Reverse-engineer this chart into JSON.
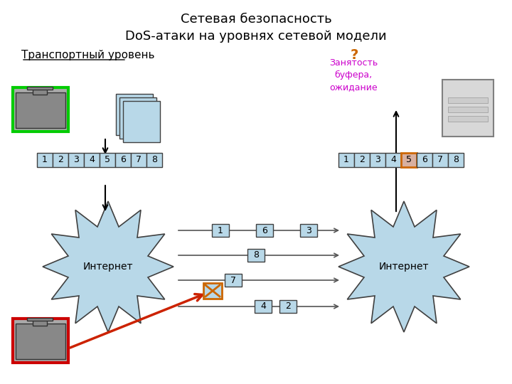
{
  "title1": "Сетевая безопасность",
  "title2": "DoS-атаки на уровнях сетевой модели",
  "subtitle": "Транспортный уровень",
  "question_mark": "?",
  "buffer_text": "Занятость\nбуфера,\nожидание",
  "internet_label": "Интернет",
  "seq_numbers": [
    "1",
    "2",
    "3",
    "4",
    "5",
    "6",
    "7",
    "8"
  ],
  "packet_labels_row1": [
    "1",
    "6",
    "3"
  ],
  "packet_label_row2": [
    "8"
  ],
  "packet_label_row3": [
    "7"
  ],
  "packet_labels_row4": [
    "4",
    "2"
  ],
  "cell_color": "#b8d8e8",
  "cell_color_highlight": "#d8b0a0",
  "star_color": "#b8d8e8",
  "star_edge": "#404040",
  "bg_color": "#ffffff",
  "green_border": "#00cc00",
  "red_border": "#cc0000",
  "magenta_text": "#cc00cc",
  "orange_text": "#cc6600",
  "arrow_color": "#cc2200"
}
